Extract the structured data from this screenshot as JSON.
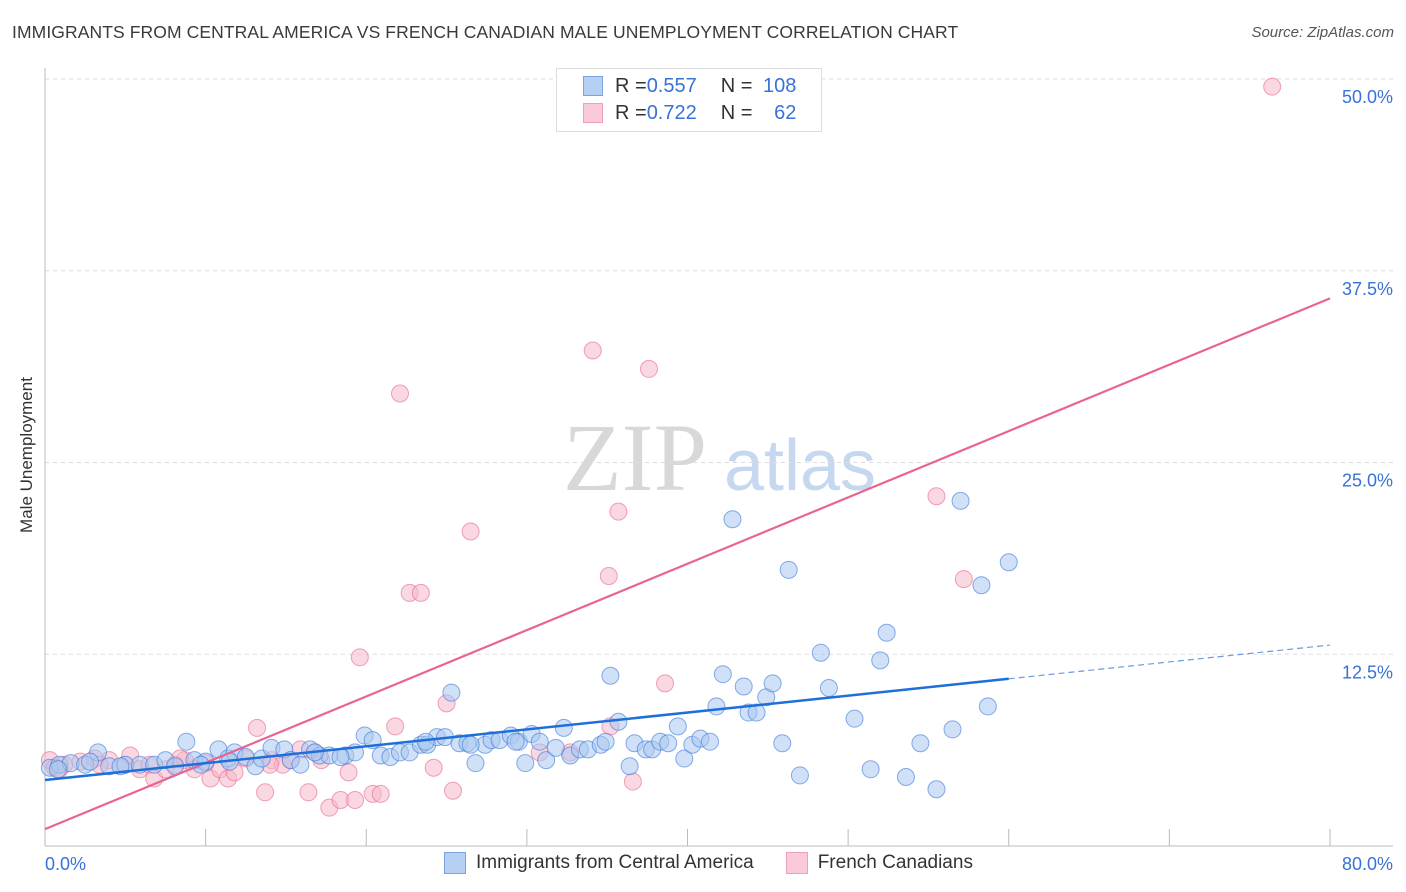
{
  "title": "IMMIGRANTS FROM CENTRAL AMERICA VS FRENCH CANADIAN MALE UNEMPLOYMENT CORRELATION CHART",
  "source": "Source: ZipAtlas.com",
  "watermark": {
    "zip": "ZIP",
    "atlas": "atlas"
  },
  "legend": {
    "blue": {
      "r_label": "R = ",
      "r": "0.557",
      "n_label": "N = ",
      "n": "108"
    },
    "pink": {
      "r_label": "R = ",
      "r": "0.722",
      "n_label": "N = ",
      "n": "62"
    }
  },
  "chart_data": {
    "type": "scatter",
    "xlabel": "",
    "ylabel": "Male Unemployment",
    "xlim": [
      0,
      80
    ],
    "ylim": [
      0,
      50
    ],
    "x_tick_labels": [
      "0.0%",
      "80.0%"
    ],
    "y_ticks": [
      12.5,
      25,
      37.5,
      50
    ],
    "y_tick_labels": [
      "12.5%",
      "25.0%",
      "37.5%",
      "50.0%"
    ],
    "grid": true,
    "colors": {
      "blue": "#3b78d8",
      "blue_fill": "#a9c8f0",
      "pink": "#e8658f",
      "pink_fill": "#f6b8cb"
    },
    "series": [
      {
        "name": "Immigrants from Central America",
        "color": "blue",
        "trend": {
          "x0": 0,
          "y0": 4.3,
          "x1": 60,
          "y1": 10.9,
          "x_dash_end": 80,
          "y_dash_end": 13.1
        },
        "points": [
          [
            0.3,
            5.1
          ],
          [
            0.9,
            5.3
          ],
          [
            1.6,
            5.4
          ],
          [
            2.5,
            5.3
          ],
          [
            3.3,
            6.1
          ],
          [
            4.0,
            5.2
          ],
          [
            5.0,
            5.3
          ],
          [
            5.9,
            5.3
          ],
          [
            6.8,
            5.3
          ],
          [
            7.5,
            5.6
          ],
          [
            8.1,
            5.2
          ],
          [
            8.8,
            6.8
          ],
          [
            9.3,
            5.6
          ],
          [
            10.0,
            5.5
          ],
          [
            10.8,
            6.3
          ],
          [
            11.4,
            5.7
          ],
          [
            11.8,
            6.1
          ],
          [
            12.5,
            5.8
          ],
          [
            13.1,
            5.2
          ],
          [
            13.5,
            5.7
          ],
          [
            14.1,
            6.4
          ],
          [
            14.9,
            6.3
          ],
          [
            15.3,
            5.6
          ],
          [
            15.9,
            5.3
          ],
          [
            16.5,
            6.3
          ],
          [
            17.1,
            5.9
          ],
          [
            17.7,
            5.9
          ],
          [
            18.7,
            5.9
          ],
          [
            19.3,
            6.1
          ],
          [
            19.9,
            7.2
          ],
          [
            20.4,
            6.9
          ],
          [
            20.9,
            5.9
          ],
          [
            21.5,
            5.8
          ],
          [
            22.1,
            6.1
          ],
          [
            22.7,
            6.1
          ],
          [
            23.4,
            6.6
          ],
          [
            23.8,
            6.6
          ],
          [
            24.4,
            7.1
          ],
          [
            24.9,
            7.1
          ],
          [
            25.3,
            10.0
          ],
          [
            25.8,
            6.7
          ],
          [
            26.3,
            6.7
          ],
          [
            26.8,
            5.4
          ],
          [
            27.4,
            6.6
          ],
          [
            27.8,
            6.9
          ],
          [
            28.3,
            6.9
          ],
          [
            29.0,
            7.2
          ],
          [
            29.5,
            6.8
          ],
          [
            29.9,
            5.4
          ],
          [
            30.3,
            7.3
          ],
          [
            30.8,
            6.8
          ],
          [
            31.2,
            5.6
          ],
          [
            31.8,
            6.4
          ],
          [
            32.3,
            7.7
          ],
          [
            32.7,
            5.9
          ],
          [
            33.3,
            6.3
          ],
          [
            33.8,
            6.3
          ],
          [
            34.6,
            6.6
          ],
          [
            34.9,
            6.8
          ],
          [
            35.2,
            11.1
          ],
          [
            35.7,
            8.1
          ],
          [
            36.4,
            5.2
          ],
          [
            36.7,
            6.7
          ],
          [
            37.4,
            6.3
          ],
          [
            37.8,
            6.3
          ],
          [
            38.3,
            6.8
          ],
          [
            38.8,
            6.7
          ],
          [
            39.4,
            7.8
          ],
          [
            39.8,
            5.7
          ],
          [
            40.3,
            6.6
          ],
          [
            40.8,
            7.0
          ],
          [
            41.4,
            6.8
          ],
          [
            41.8,
            9.1
          ],
          [
            42.2,
            11.2
          ],
          [
            42.8,
            21.3
          ],
          [
            43.5,
            10.4
          ],
          [
            43.8,
            8.7
          ],
          [
            44.3,
            8.7
          ],
          [
            44.9,
            9.7
          ],
          [
            45.3,
            10.6
          ],
          [
            45.9,
            6.7
          ],
          [
            46.3,
            18.0
          ],
          [
            47.0,
            4.6
          ],
          [
            48.3,
            12.6
          ],
          [
            48.8,
            10.3
          ],
          [
            50.4,
            8.3
          ],
          [
            51.4,
            5.0
          ],
          [
            52.0,
            12.1
          ],
          [
            52.4,
            13.9
          ],
          [
            53.6,
            4.5
          ],
          [
            54.5,
            6.7
          ],
          [
            55.5,
            3.7
          ],
          [
            56.5,
            7.6
          ],
          [
            57.0,
            22.5
          ],
          [
            58.3,
            17.0
          ],
          [
            58.7,
            9.1
          ],
          [
            60.0,
            18.5
          ],
          [
            0.8,
            5.0
          ],
          [
            2.8,
            5.5
          ],
          [
            18.4,
            5.8
          ],
          [
            23.7,
            6.8
          ],
          [
            26.5,
            6.6
          ],
          [
            29.3,
            6.8
          ],
          [
            16.8,
            6.1
          ],
          [
            11.5,
            5.5
          ],
          [
            9.7,
            5.3
          ],
          [
            4.7,
            5.2
          ]
        ]
      },
      {
        "name": "French Canadians",
        "color": "pink",
        "trend": {
          "x0": 0,
          "y0": 1.1,
          "x1": 80,
          "y1": 35.7
        },
        "points": [
          [
            0.3,
            5.6
          ],
          [
            0.6,
            5.1
          ],
          [
            1.2,
            5.3
          ],
          [
            2.2,
            5.5
          ],
          [
            3.1,
            5.7
          ],
          [
            4.0,
            5.6
          ],
          [
            5.0,
            5.3
          ],
          [
            5.3,
            5.9
          ],
          [
            5.9,
            5.0
          ],
          [
            6.5,
            5.3
          ],
          [
            6.8,
            4.4
          ],
          [
            7.5,
            5.0
          ],
          [
            8.1,
            5.3
          ],
          [
            8.7,
            5.6
          ],
          [
            9.3,
            5.0
          ],
          [
            10.0,
            5.4
          ],
          [
            10.3,
            4.4
          ],
          [
            10.9,
            5.0
          ],
          [
            11.4,
            4.4
          ],
          [
            11.8,
            4.8
          ],
          [
            12.5,
            5.7
          ],
          [
            13.2,
            7.7
          ],
          [
            13.7,
            3.5
          ],
          [
            14.1,
            5.6
          ],
          [
            14.8,
            5.3
          ],
          [
            15.3,
            5.6
          ],
          [
            15.9,
            6.3
          ],
          [
            16.4,
            3.5
          ],
          [
            16.8,
            6.1
          ],
          [
            17.2,
            5.6
          ],
          [
            17.7,
            2.5
          ],
          [
            18.4,
            3.0
          ],
          [
            18.9,
            4.8
          ],
          [
            19.3,
            3.0
          ],
          [
            19.6,
            12.3
          ],
          [
            20.4,
            3.4
          ],
          [
            20.9,
            3.4
          ],
          [
            21.8,
            7.8
          ],
          [
            22.1,
            29.5
          ],
          [
            22.7,
            16.5
          ],
          [
            23.4,
            16.5
          ],
          [
            24.2,
            5.1
          ],
          [
            25.0,
            9.3
          ],
          [
            25.4,
            3.6
          ],
          [
            26.5,
            20.5
          ],
          [
            32.7,
            6.1
          ],
          [
            34.1,
            32.3
          ],
          [
            35.1,
            17.6
          ],
          [
            35.2,
            7.8
          ],
          [
            35.7,
            21.8
          ],
          [
            36.6,
            4.2
          ],
          [
            37.6,
            31.1
          ],
          [
            38.6,
            10.6
          ],
          [
            55.5,
            22.8
          ],
          [
            57.2,
            17.4
          ],
          [
            76.4,
            49.5
          ],
          [
            3.4,
            5.3
          ],
          [
            8.4,
            5.7
          ],
          [
            30.8,
            6.1
          ],
          [
            0.9,
            5.0
          ],
          [
            14.0,
            5.3
          ]
        ]
      }
    ]
  }
}
